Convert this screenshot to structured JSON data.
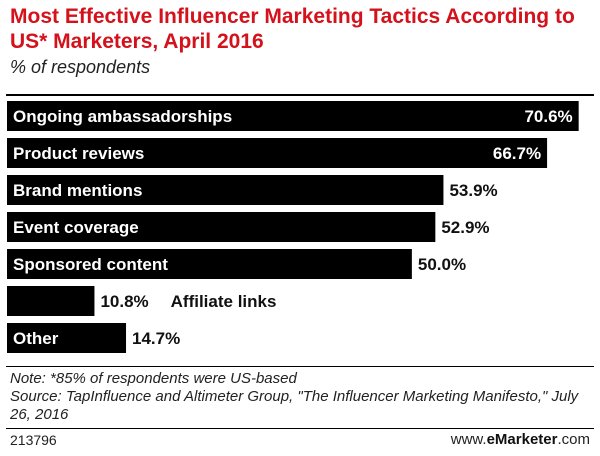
{
  "header": {
    "title": "Most Effective Influencer Marketing Tactics According to US* Marketers, April 2016",
    "subtitle": "% of respondents"
  },
  "chart_data": {
    "type": "bar",
    "orientation": "horizontal",
    "categories": [
      "Ongoing ambassadorships",
      "Product reviews",
      "Brand mentions",
      "Event coverage",
      "Sponsored content",
      "Affiliate links",
      "Other"
    ],
    "values": [
      70.6,
      66.7,
      53.9,
      52.9,
      50.0,
      10.8,
      14.7
    ],
    "value_labels": [
      "70.6%",
      "66.7%",
      "53.9%",
      "52.9%",
      "50.0%",
      "10.8%",
      "14.7%"
    ],
    "unit": "%",
    "xlim": [
      0,
      72
    ],
    "grid": false,
    "legend": "none",
    "bar_color": "#000000",
    "label_in_bar_color": "#ffffff"
  },
  "footer": {
    "note": "Note: *85% of respondents were US-based",
    "source": "Source: TapInfluence and Altimeter Group, \"The Influencer Marketing Manifesto,\" July 26, 2016",
    "chart_id": "213796",
    "brand_prefix": "www.",
    "brand_name": "eMarketer",
    "brand_suffix": ".com"
  },
  "colors": {
    "title": "#d3121b",
    "bar": "#000000",
    "text": "#222222"
  }
}
